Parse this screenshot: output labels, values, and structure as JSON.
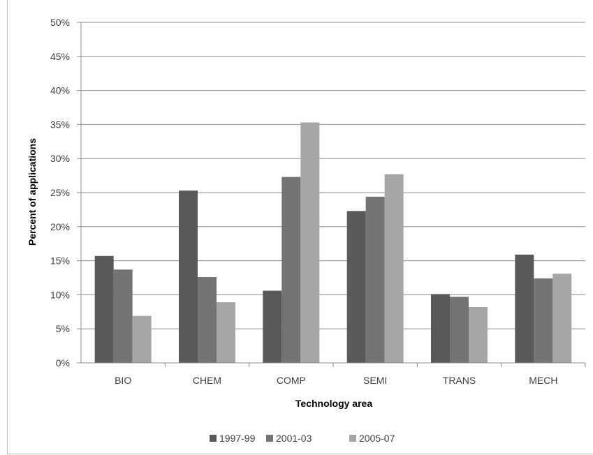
{
  "chart_data": {
    "type": "bar",
    "title": "",
    "xlabel": "Technology area",
    "ylabel": "Percent of applications",
    "categories": [
      "BIO",
      "CHEM",
      "COMP",
      "SEMI",
      "TRANS",
      "MECH"
    ],
    "series": [
      {
        "name": "1997-99",
        "color": "#595959",
        "values": [
          15.7,
          25.3,
          10.6,
          22.3,
          10.1,
          15.9
        ]
      },
      {
        "name": "2001-03",
        "color": "#737373",
        "values": [
          13.7,
          12.6,
          27.3,
          24.4,
          9.7,
          12.4
        ]
      },
      {
        "name": "2005-07",
        "color": "#a6a6a6",
        "values": [
          6.9,
          8.9,
          35.3,
          27.7,
          8.2,
          13.1
        ]
      }
    ],
    "ylim": [
      0,
      50
    ],
    "yticks": [
      "0%",
      "5%",
      "10%",
      "15%",
      "20%",
      "25%",
      "30%",
      "35%",
      "40%",
      "45%",
      "50%"
    ],
    "grid": true,
    "legend_position": "bottom"
  }
}
